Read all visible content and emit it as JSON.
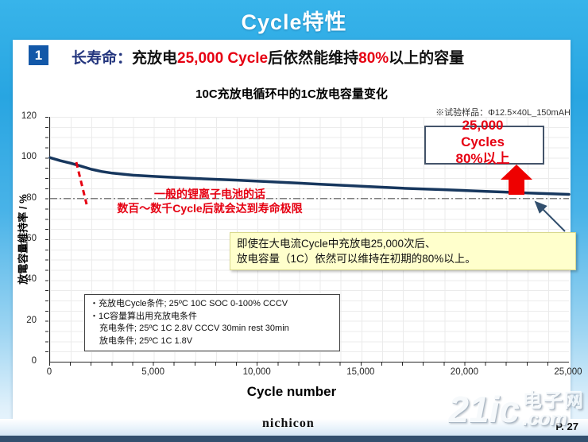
{
  "title": "Cycle特性",
  "headline": {
    "number": "1",
    "part1": "长寿命：",
    "part2": "充放电",
    "part3": "25,000 Cycle",
    "part4": "后依然能维持",
    "part5": "80%",
    "part6": "以上的容量"
  },
  "chart": {
    "sample_note": "※试验样品：Φ12.5×40L_150mAH"
  },
  "annotations": {
    "liion_line1": "一般的锂离子电池的话",
    "liion_line2": "数百～数千Cycle后就会达到寿命极限",
    "cycles_box_line1": "25,000",
    "cycles_box_line2": "Cycles",
    "cycles_box_line3": "80%以上",
    "note_line1": "即使在大电流Cycle中充放电25,000次后、",
    "note_line2": "放电容量（1C）依然可以维持在初期的80%以上。",
    "cond_line1": "・充放电Cycle条件; 25ºC 10C SOC 0-100% CCCV",
    "cond_line2": "・1C容量算出用充放电条件",
    "cond_line3": "充电条件; 25ºC 1C 2.8V CCCV 30min rest 30min",
    "cond_line4": "放电条件; 25ºC 1C 1.8V"
  },
  "footer": {
    "logo": "nichicon",
    "page": "P. 27",
    "watermark_main": "21ic",
    "watermark_cn": "电子网",
    "watermark_suffix": ".com"
  },
  "colors": {
    "accent_red": "#e60012",
    "curve_navy": "#17375e",
    "headline_blue": "#24367e",
    "background_cyan": "#29a7e2",
    "reference_gray": "#7f7f7f"
  },
  "chart_data": {
    "type": "line",
    "title": "10C充放电循环中的1C放电容量变化",
    "xlabel": "Cycle number",
    "ylabel": "放電容量維持率 / %",
    "xlim": [
      0,
      25000
    ],
    "ylim": [
      0,
      120
    ],
    "grid": true,
    "legend": "none",
    "x_ticks": [
      {
        "v": 0,
        "label": "0"
      },
      {
        "v": 5000,
        "label": "5,000"
      },
      {
        "v": 10000,
        "label": "10,000"
      },
      {
        "v": 15000,
        "label": "15,000"
      },
      {
        "v": 20000,
        "label": "20,000"
      },
      {
        "v": 25000,
        "label": "25,000"
      }
    ],
    "y_ticks": [
      {
        "v": 0,
        "label": "0"
      },
      {
        "v": 20,
        "label": "20"
      },
      {
        "v": 40,
        "label": "40"
      },
      {
        "v": 60,
        "label": "60"
      },
      {
        "v": 80,
        "label": "80"
      },
      {
        "v": 100,
        "label": "100"
      },
      {
        "v": 120,
        "label": "120"
      }
    ],
    "series": [
      {
        "name": "1C discharge capacity retention during 10C cycling",
        "color": "#17375e",
        "x": [
          0,
          500,
          1000,
          1500,
          2000,
          2500,
          3000,
          4000,
          5000,
          7000,
          9000,
          11000,
          13000,
          15000,
          17000,
          19000,
          21000,
          23000,
          25000
        ],
        "y": [
          100,
          98.5,
          97.3,
          95.8,
          94.3,
          93.2,
          92.4,
          91.4,
          90.8,
          89.8,
          89.0,
          88.0,
          87.0,
          86.0,
          85.0,
          84.3,
          83.5,
          82.7,
          82.0
        ]
      }
    ],
    "reference_line": {
      "y": 80,
      "style": "dashdot",
      "color": "#7f7f7f"
    }
  }
}
